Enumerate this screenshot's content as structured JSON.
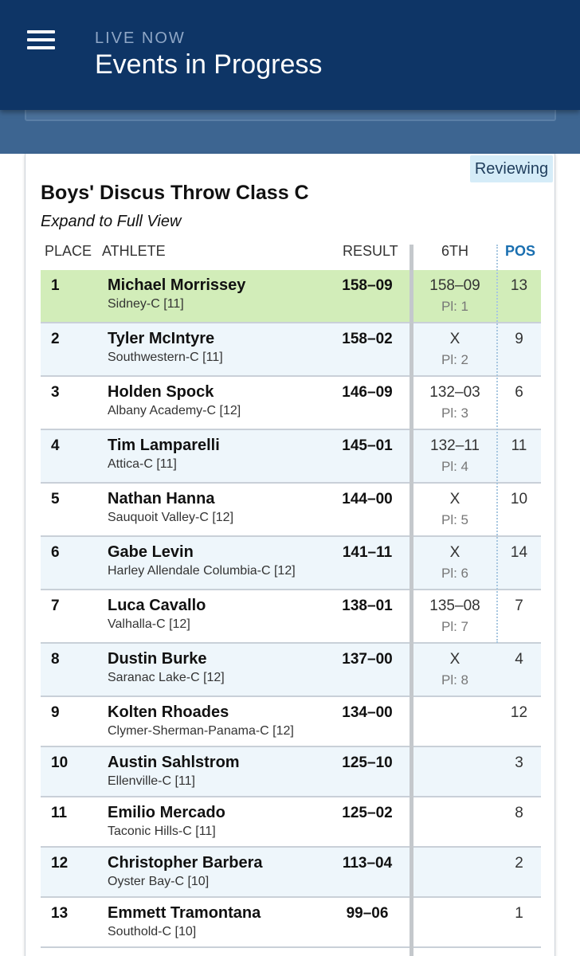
{
  "header": {
    "overline": "LIVE NOW",
    "title": "Events in Progress"
  },
  "event": {
    "status_badge": "Reviewing",
    "title": "Boys' Discus Throw Class C",
    "expand_link": "Expand to Full View"
  },
  "table": {
    "columns": {
      "place": "PLACE",
      "athlete": "ATHLETE",
      "result": "RESULT",
      "sixth": "6TH",
      "pos": "POS"
    },
    "rows": [
      {
        "place": "1",
        "name": "Michael Morrissey",
        "school": "Sidney-C [11]",
        "result": "158–09",
        "sixth": "158–09",
        "pl": "Pl: 1",
        "pos": "13"
      },
      {
        "place": "2",
        "name": "Tyler McIntyre",
        "school": "Southwestern-C [11]",
        "result": "158–02",
        "sixth": "X",
        "pl": "Pl: 2",
        "pos": "9"
      },
      {
        "place": "3",
        "name": "Holden Spock",
        "school": "Albany Academy-C [12]",
        "result": "146–09",
        "sixth": "132–03",
        "pl": "Pl: 3",
        "pos": "6"
      },
      {
        "place": "4",
        "name": "Tim Lamparelli",
        "school": "Attica-C [11]",
        "result": "145–01",
        "sixth": "132–11",
        "pl": "Pl: 4",
        "pos": "11"
      },
      {
        "place": "5",
        "name": "Nathan Hanna",
        "school": "Sauquoit Valley-C [12]",
        "result": "144–00",
        "sixth": "X",
        "pl": "Pl: 5",
        "pos": "10"
      },
      {
        "place": "6",
        "name": "Gabe Levin",
        "school": "Harley Allendale Columbia-C [12]",
        "result": "141–11",
        "sixth": "X",
        "pl": "Pl: 6",
        "pos": "14"
      },
      {
        "place": "7",
        "name": "Luca Cavallo",
        "school": "Valhalla-C [12]",
        "result": "138–01",
        "sixth": "135–08",
        "pl": "Pl: 7",
        "pos": "7"
      },
      {
        "place": "8",
        "name": "Dustin Burke",
        "school": "Saranac Lake-C [12]",
        "result": "137–00",
        "sixth": "X",
        "pl": "Pl: 8",
        "pos": "4"
      },
      {
        "place": "9",
        "name": "Kolten Rhoades",
        "school": "Clymer-Sherman-Panama-C [12]",
        "result": "134–00",
        "sixth": "",
        "pl": "",
        "pos": "12"
      },
      {
        "place": "10",
        "name": "Austin Sahlstrom",
        "school": "Ellenville-C [11]",
        "result": "125–10",
        "sixth": "",
        "pl": "",
        "pos": "3"
      },
      {
        "place": "11",
        "name": "Emilio Mercado",
        "school": "Taconic Hills-C [11]",
        "result": "125–02",
        "sixth": "",
        "pl": "",
        "pos": "8"
      },
      {
        "place": "12",
        "name": "Christopher Barbera",
        "school": "Oyster Bay-C [10]",
        "result": "113–04",
        "sixth": "",
        "pl": "",
        "pos": "2"
      },
      {
        "place": "13",
        "name": "Emmett Tramontana",
        "school": "Southold-C [10]",
        "result": "99–06",
        "sixth": "",
        "pl": "",
        "pos": "1"
      }
    ]
  }
}
